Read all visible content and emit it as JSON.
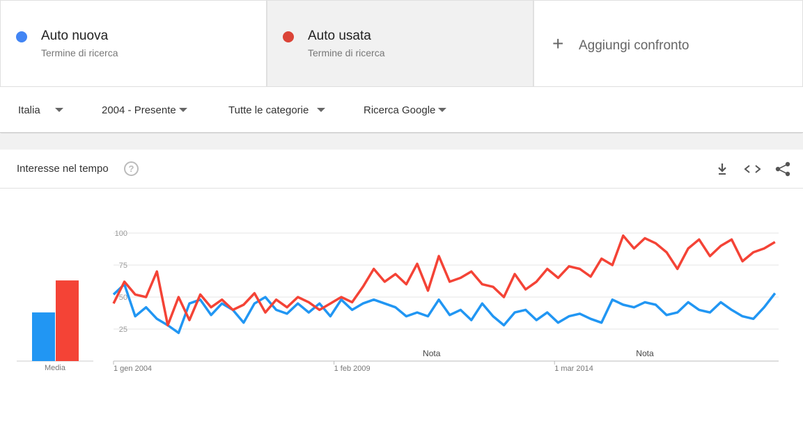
{
  "header": {
    "add_compare": "Aggiungi confronto"
  },
  "terms": [
    {
      "subtitle": "Termine di ricerca"
    },
    {
      "subtitle": "Termine di ricerca"
    }
  ],
  "filters": [
    "Italia",
    "2004 - Presente",
    "Tutte le categorie",
    "Ricerca Google"
  ],
  "section": {
    "title": "Interesse nel tempo"
  },
  "chart_data": [
    {
      "type": "bar",
      "categories": [
        "Media"
      ],
      "ylim": [
        0,
        100
      ],
      "series": [
        {
          "color": "#2196f3",
          "values": [
            38
          ]
        },
        {
          "color": "#f44336",
          "values": [
            63
          ]
        }
      ]
    },
    {
      "type": "line",
      "xlim": [
        0,
        184
      ],
      "ylim": [
        0,
        100
      ],
      "xticks": [
        {
          "value": 0,
          "label": "1 gen 2004"
        },
        {
          "value": 61,
          "label": "1 feb 2009"
        },
        {
          "value": 122,
          "label": "1 mar 2014"
        }
      ],
      "yticks": [
        25,
        50,
        75,
        100
      ],
      "grid": true,
      "annotations": [
        {
          "text": "Nota",
          "x": 88
        },
        {
          "text": "Nota",
          "x": 147
        }
      ],
      "x": [
        0,
        3,
        6,
        9,
        12,
        15,
        18,
        21,
        24,
        27,
        30,
        33,
        36,
        39,
        42,
        45,
        48,
        51,
        54,
        57,
        60,
        63,
        66,
        69,
        72,
        75,
        78,
        81,
        84,
        87,
        90,
        93,
        96,
        99,
        102,
        105,
        108,
        111,
        114,
        117,
        120,
        123,
        126,
        129,
        132,
        135,
        138,
        141,
        144,
        147,
        150,
        153,
        156,
        159,
        162,
        165,
        168,
        171,
        174,
        177,
        180,
        183
      ],
      "series": [
        {
          "name": "Auto nuova",
          "color": "#4285f4",
          "line_color": "#2196f3",
          "values": [
            52,
            60,
            35,
            42,
            33,
            28,
            22,
            45,
            48,
            36,
            45,
            40,
            30,
            45,
            50,
            40,
            37,
            45,
            38,
            45,
            35,
            48,
            40,
            45,
            48,
            45,
            42,
            35,
            38,
            35,
            48,
            36,
            40,
            32,
            45,
            35,
            28,
            38,
            40,
            32,
            38,
            30,
            35,
            37,
            33,
            30,
            48,
            44,
            42,
            46,
            44,
            36,
            38,
            46,
            40,
            38,
            46,
            40,
            35,
            33,
            42,
            53
          ]
        },
        {
          "name": "Auto usata",
          "color": "#db4437",
          "line_color": "#f44336",
          "values": [
            45,
            62,
            52,
            50,
            70,
            28,
            50,
            32,
            52,
            42,
            48,
            40,
            44,
            53,
            38,
            48,
            42,
            50,
            46,
            40,
            45,
            50,
            46,
            58,
            72,
            62,
            68,
            60,
            76,
            55,
            82,
            62,
            65,
            70,
            60,
            58,
            50,
            68,
            56,
            62,
            72,
            65,
            74,
            72,
            66,
            80,
            75,
            98,
            88,
            96,
            92,
            85,
            72,
            88,
            95,
            82,
            90,
            95,
            78,
            85,
            88,
            93
          ]
        }
      ]
    }
  ]
}
